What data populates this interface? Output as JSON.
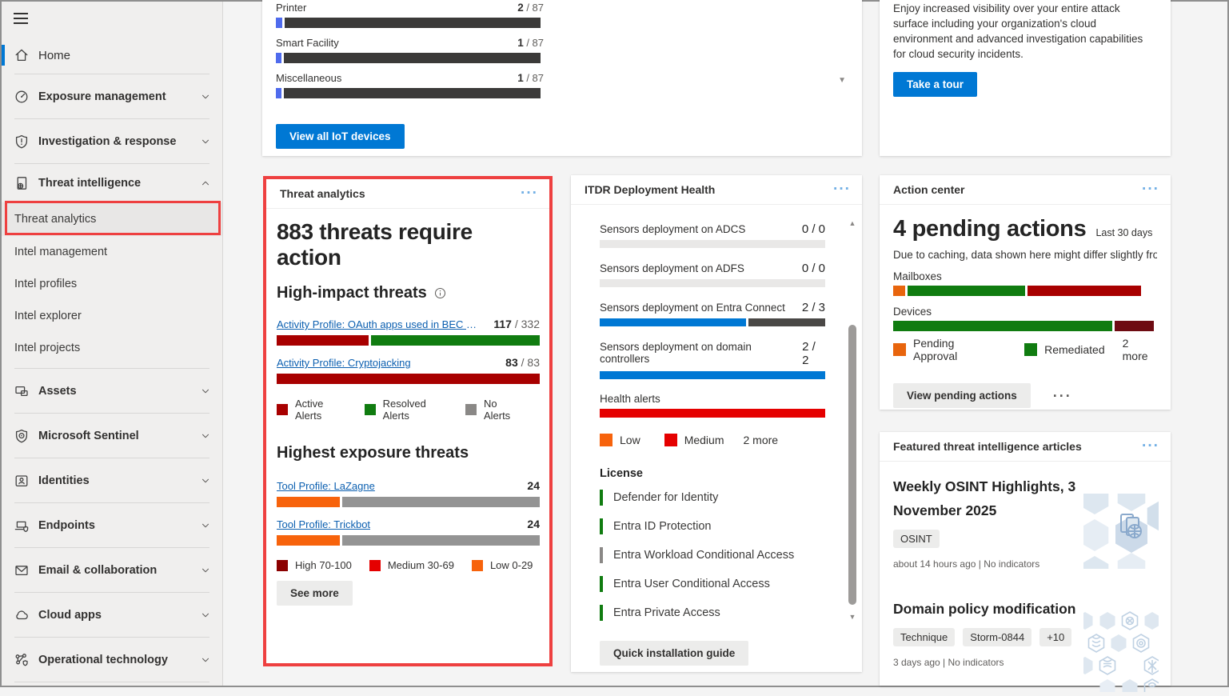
{
  "colors": {
    "accent": "#0078d4",
    "link": "#0b5fb0",
    "annotation_red": "#ee4040"
  },
  "sidebar": {
    "home": "Home",
    "groups": {
      "exposure": "Exposure management",
      "investigation": "Investigation & response",
      "threat_intelligence": "Threat intelligence",
      "assets": "Assets",
      "sentinel": "Microsoft Sentinel",
      "identities": "Identities",
      "endpoints": "Endpoints",
      "email": "Email & collaboration",
      "cloud_apps": "Cloud apps",
      "operational_technology": "Operational technology"
    },
    "threat_intelligence_children": {
      "analytics": "Threat analytics",
      "management": "Intel management",
      "profiles": "Intel profiles",
      "explorer": "Intel explorer",
      "projects": "Intel projects"
    }
  },
  "iot_devices": {
    "rows": [
      {
        "label": "Printer",
        "value": "2",
        "total_suffix": " / 87",
        "segments": [
          {
            "pct": 2.5,
            "color": "#4f6bed"
          },
          {
            "pct": 95.5,
            "color": "#3b3a39"
          }
        ]
      },
      {
        "label": "Smart Facility",
        "value": "1",
        "total_suffix": " / 87",
        "segments": [
          {
            "pct": 2,
            "color": "#4f6bed"
          },
          {
            "pct": 96,
            "color": "#3b3a39"
          }
        ]
      },
      {
        "label": "Miscellaneous",
        "value": "1",
        "total_suffix": " / 87",
        "segments": [
          {
            "pct": 2,
            "color": "#4f6bed"
          },
          {
            "pct": 96,
            "color": "#3b3a39"
          }
        ]
      }
    ],
    "view_all_button": "View all IoT devices"
  },
  "cloud_protection": {
    "text": "Enjoy increased visibility over your entire attack surface including your organization's cloud environment and advanced investigation capabilities for cloud security incidents.",
    "button": "Take a tour"
  },
  "threat_analytics": {
    "title": "Threat analytics",
    "headline": "883 threats require action",
    "high_impact": {
      "heading": "High-impact threats",
      "rows": [
        {
          "link": "Activity Profile: OAuth apps used in BEC and phi...",
          "value": "117",
          "total_suffix": " / 332",
          "segments": [
            {
              "pct": 35,
              "color": "#a80000"
            },
            {
              "pct": 64,
              "color": "#107c10"
            }
          ]
        },
        {
          "link": "Activity Profile: Cryptojacking",
          "value": "83",
          "total_suffix": " / 83",
          "segments": [
            {
              "pct": 100,
              "color": "#a80000"
            }
          ]
        }
      ],
      "legend": [
        {
          "label": "Active Alerts",
          "color": "#a80000"
        },
        {
          "label": "Resolved Alerts",
          "color": "#107c10"
        },
        {
          "label": "No Alerts",
          "color": "#8a8886"
        }
      ]
    },
    "highest_exposure": {
      "heading": "Highest exposure threats",
      "rows": [
        {
          "link": "Tool Profile: LaZagne",
          "value": "24",
          "segments": [
            {
              "pct": 24,
              "color": "#f7630c"
            },
            {
              "pct": 75,
              "color": "#949494"
            }
          ]
        },
        {
          "link": "Tool Profile: Trickbot",
          "value": "24",
          "segments": [
            {
              "pct": 24,
              "color": "#f7630c"
            },
            {
              "pct": 75,
              "color": "#949494"
            }
          ]
        }
      ],
      "legend": [
        {
          "label": "High 70-100",
          "color": "#8b0000"
        },
        {
          "label": "Medium 30-69",
          "color": "#e50000"
        },
        {
          "label": "Low 0-29",
          "color": "#f7630c"
        }
      ]
    },
    "see_more_button": "See more"
  },
  "itdr": {
    "title": "ITDR Deployment Health",
    "sensors": [
      {
        "label": "Sensors deployment on ADCS",
        "value": "0 / 0",
        "segments": [
          {
            "pct": 100,
            "color": "#e9e8e7"
          }
        ]
      },
      {
        "label": "Sensors deployment on ADFS",
        "value": "0 / 0",
        "segments": [
          {
            "pct": 100,
            "color": "#e9e8e7"
          }
        ]
      },
      {
        "label": "Sensors deployment on Entra Connect",
        "value": "2 / 3",
        "segments": [
          {
            "pct": 65,
            "color": "#0078d4"
          },
          {
            "pct": 34,
            "color": "#4a4846"
          }
        ]
      },
      {
        "label": "Sensors deployment on domain controllers",
        "value": "2 / 2",
        "segments": [
          {
            "pct": 100,
            "color": "#0078d4"
          }
        ]
      }
    ],
    "health_alerts": {
      "label": "Health alerts",
      "segments": [
        {
          "pct": 100,
          "color": "#e50000"
        }
      ]
    },
    "legend": [
      {
        "label": "Low",
        "color": "#f7630c"
      },
      {
        "label": "Medium",
        "color": "#e50000"
      }
    ],
    "legend_more": "2 more",
    "license": {
      "heading": "License",
      "items": [
        {
          "label": "Defender for Identity",
          "color": "#107c10"
        },
        {
          "label": "Entra ID Protection",
          "color": "#107c10"
        },
        {
          "label": "Entra Workload Conditional Access",
          "color": "#8a8886"
        },
        {
          "label": "Entra User Conditional Access",
          "color": "#107c10"
        },
        {
          "label": "Entra Private Access",
          "color": "#107c10"
        }
      ]
    },
    "guide_button": "Quick installation guide"
  },
  "action_center": {
    "title": "Action center",
    "headline": "4 pending actions",
    "period": "Last 30 days",
    "note": "Due to caching, data shown here might differ slightly from t...",
    "bars": [
      {
        "label": "Mailboxes",
        "segments": [
          {
            "pct": 4.5,
            "color": "#e8650d"
          },
          {
            "pct": 44.5,
            "color": "#107c10"
          },
          {
            "pct": 43,
            "color": "#a80000"
          }
        ]
      },
      {
        "label": "Devices",
        "segments": [
          {
            "pct": 83,
            "color": "#107c10"
          },
          {
            "pct": 15,
            "color": "#6e0b12"
          }
        ]
      }
    ],
    "legend": [
      {
        "label": "Pending Approval",
        "color": "#e8650d"
      },
      {
        "label": "Remediated",
        "color": "#107c10"
      }
    ],
    "legend_more": "2 more",
    "pending_button": "View pending actions"
  },
  "featured": {
    "title": "Featured threat intelligence articles",
    "articles": [
      {
        "title": "Weekly OSINT Highlights, 3 November 2025",
        "tags": [
          "OSINT"
        ],
        "meta": "about 14 hours ago | No indicators"
      },
      {
        "title": "Domain policy modification",
        "tags": [
          "Technique",
          "Storm-0844",
          "+10"
        ],
        "meta": "3 days ago | No indicators"
      }
    ]
  }
}
